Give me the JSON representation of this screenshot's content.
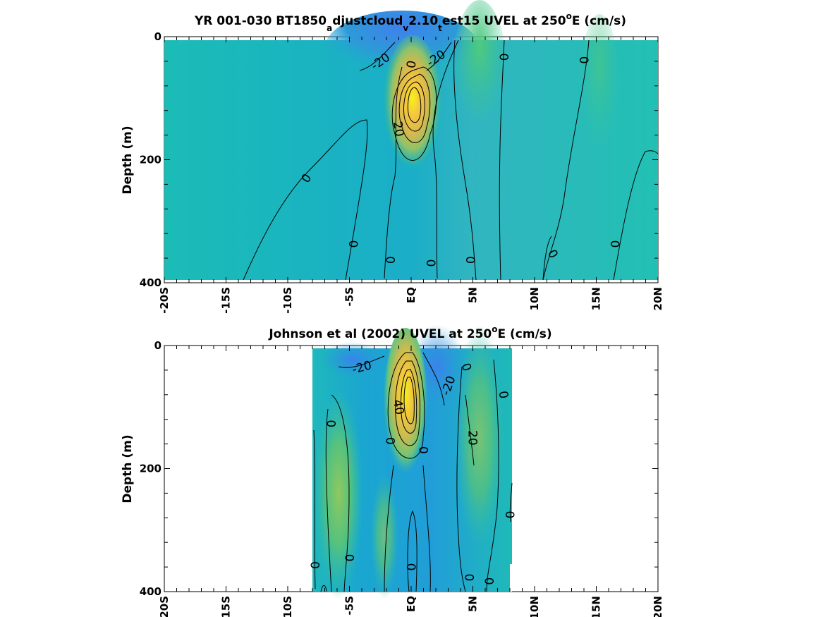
{
  "chart_data": [
    {
      "type": "heatmap",
      "subtype": "filled contour section",
      "title_parts": [
        "YR 001-030 BT1850",
        "a",
        "djustcloud",
        "v",
        "2.10",
        "t",
        "est15 UVEL at 250",
        "o",
        "E (cm/s)"
      ],
      "xlabel": "",
      "ylabel": "Depth (m)",
      "xlim": [
        -20,
        20
      ],
      "ylim": [
        400,
        0
      ],
      "y_reversed": true,
      "x_ticks": [
        -20,
        -15,
        -10,
        -5,
        0,
        5,
        10,
        15,
        20
      ],
      "x_tick_labels": [
        "-20S",
        "-15S",
        "-10S",
        "-5S",
        "EQ",
        "5N",
        "10N",
        "15N",
        "20N"
      ],
      "y_ticks": [
        0,
        200,
        400
      ],
      "y_tick_labels": [
        "0",
        "200",
        "400"
      ],
      "data_extent": {
        "x": [
          -20,
          20
        ],
        "depth": [
          5,
          395
        ]
      },
      "colormap": "parula",
      "colors": {
        "low": "#3b7ee8",
        "zero": "#18b8b8",
        "mid": "#52c878",
        "high": "#f0f020"
      },
      "features": [
        {
          "name": "Equatorial Undercurrent core",
          "lat": 0,
          "depth": 100,
          "value": 100
        },
        {
          "name": "westward surface flow",
          "lat_range": [
            -5,
            3
          ],
          "depth_range": [
            5,
            50
          ],
          "value": -30
        },
        {
          "name": "eastward band",
          "lat": 5,
          "depth": 60,
          "value": 15
        }
      ],
      "contour_labels": [
        {
          "text": "-20",
          "lat": -2.5,
          "depth": 40,
          "rot": -35
        },
        {
          "text": "0",
          "lat": 0,
          "depth": 45,
          "rot": -80
        },
        {
          "text": "-20",
          "lat": 2,
          "depth": 35,
          "rot": -35
        },
        {
          "text": "0",
          "lat": 7.5,
          "depth": 33,
          "rot": 90
        },
        {
          "text": "0",
          "lat": 14,
          "depth": 38,
          "rot": 90
        },
        {
          "text": "20",
          "lat": -1,
          "depth": 150,
          "rot": 80
        },
        {
          "text": "0",
          "lat": -8.5,
          "depth": 230,
          "rot": -55
        },
        {
          "text": "0",
          "lat": -4.7,
          "depth": 337,
          "rot": 90
        },
        {
          "text": "0",
          "lat": -1.7,
          "depth": 363,
          "rot": 90
        },
        {
          "text": "0",
          "lat": 1.6,
          "depth": 368,
          "rot": 90
        },
        {
          "text": "0",
          "lat": 4.8,
          "depth": 363,
          "rot": 90
        },
        {
          "text": "0",
          "lat": 11.5,
          "depth": 353,
          "rot": 60
        },
        {
          "text": "0",
          "lat": 16.5,
          "depth": 337,
          "rot": 90
        }
      ]
    },
    {
      "type": "heatmap",
      "subtype": "filled contour section",
      "title_parts": [
        "Johnson et al (2002) UVEL at 250",
        "o",
        "E (cm/s)"
      ],
      "xlabel": "",
      "ylabel": "Depth (m)",
      "xlim": [
        -20,
        20
      ],
      "ylim": [
        400,
        0
      ],
      "y_reversed": true,
      "x_ticks": [
        -20,
        -15,
        -10,
        -5,
        0,
        5,
        10,
        15,
        20
      ],
      "x_tick_labels": [
        "-20S",
        "-15S",
        "-10S",
        "-5S",
        "EQ",
        "5N",
        "10N",
        "15N",
        "20N"
      ],
      "y_ticks": [
        0,
        200,
        400
      ],
      "y_tick_labels": [
        "0",
        "200",
        "400"
      ],
      "data_extent": {
        "x": [
          -8,
          8.2
        ],
        "depth": [
          5,
          400
        ]
      },
      "colormap": "parula",
      "colors": {
        "low": "#3b7ee8",
        "zero": "#18b8b8",
        "mid": "#52c878",
        "high": "#f0f020"
      },
      "features": [
        {
          "name": "Equatorial Undercurrent core",
          "lat": -0.3,
          "depth": 75,
          "value": 100
        },
        {
          "name": "westward flow north",
          "lat": 2.5,
          "depth": 50,
          "value": -30
        },
        {
          "name": "westward flow south",
          "lat": -3.5,
          "depth": 20,
          "value": -25
        },
        {
          "name": "eastward band south",
          "lat": -6.3,
          "depth": 180,
          "value": 15
        },
        {
          "name": "eastward band north",
          "lat": 5.5,
          "depth": 90,
          "value": 15
        }
      ],
      "contour_labels": [
        {
          "text": "-20",
          "lat": -4,
          "depth": 35,
          "rot": -15
        },
        {
          "text": "0",
          "lat": 4.5,
          "depth": 35,
          "rot": 70
        },
        {
          "text": "-20",
          "lat": 3,
          "depth": 65,
          "rot": -70
        },
        {
          "text": "0",
          "lat": 7.5,
          "depth": 80,
          "rot": 80
        },
        {
          "text": "40",
          "lat": -1,
          "depth": 100,
          "rot": 80
        },
        {
          "text": "0",
          "lat": -6.5,
          "depth": 127,
          "rot": 90
        },
        {
          "text": "0",
          "lat": -1.7,
          "depth": 155,
          "rot": 90
        },
        {
          "text": "0",
          "lat": 1,
          "depth": 170,
          "rot": 90
        },
        {
          "text": "20",
          "lat": 5,
          "depth": 150,
          "rot": 90
        },
        {
          "text": "0",
          "lat": 8,
          "depth": 275,
          "rot": 90
        },
        {
          "text": "0",
          "lat": -7.8,
          "depth": 357,
          "rot": 90
        },
        {
          "text": "0",
          "lat": -5,
          "depth": 345,
          "rot": 90
        },
        {
          "text": "0",
          "lat": 0,
          "depth": 360,
          "rot": 90
        },
        {
          "text": "0",
          "lat": 4.7,
          "depth": 377,
          "rot": 90
        },
        {
          "text": "0",
          "lat": 6.3,
          "depth": 383,
          "rot": 90
        }
      ]
    }
  ]
}
